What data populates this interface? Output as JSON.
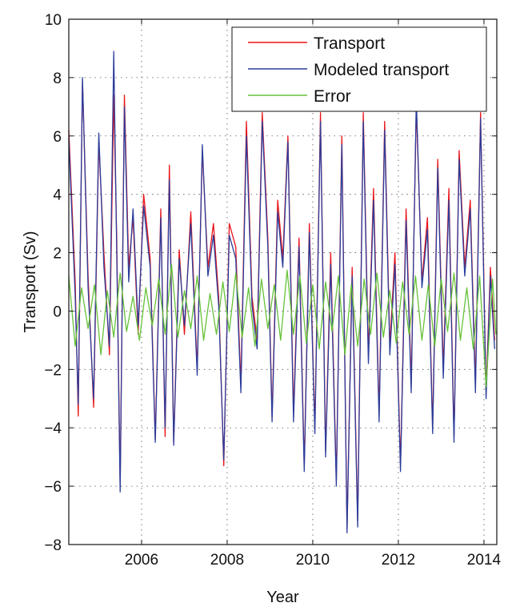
{
  "chart_data": {
    "type": "line",
    "title": "",
    "xlabel": "Year",
    "ylabel": "Transport (Sv)",
    "xlim": [
      2004.3,
      2014.3
    ],
    "ylim": [
      -8,
      10
    ],
    "xticks": [
      2006,
      2008,
      2010,
      2012,
      2014
    ],
    "xtick_labels": [
      "2006",
      "2008",
      "2010",
      "2012",
      "2014"
    ],
    "yticks": [
      -8,
      -6,
      -4,
      -2,
      0,
      2,
      4,
      6,
      8,
      10
    ],
    "ytick_labels": [
      "−8",
      "−6",
      "−4",
      "−2",
      "0",
      "2",
      "4",
      "6",
      "8",
      "10"
    ],
    "grid": true,
    "grid_style": "dotted",
    "legend_position": "top-right",
    "series": [
      {
        "name": "Transport",
        "color": "#e8141a",
        "x": [
          2004.3,
          2004.45,
          2004.52,
          2004.62,
          2004.75,
          2004.88,
          2005.0,
          2005.12,
          2005.25,
          2005.35,
          2005.42,
          2005.5,
          2005.6,
          2005.7,
          2005.8,
          2005.92,
          2006.05,
          2006.2,
          2006.32,
          2006.45,
          2006.55,
          2006.65,
          2006.75,
          2006.88,
          2007.0,
          2007.15,
          2007.3,
          2007.42,
          2007.55,
          2007.68,
          2007.8,
          2007.92,
          2008.05,
          2008.2,
          2008.32,
          2008.45,
          2008.58,
          2008.7,
          2008.82,
          2008.95,
          2009.05,
          2009.18,
          2009.3,
          2009.42,
          2009.55,
          2009.68,
          2009.8,
          2009.92,
          2010.05,
          2010.18,
          2010.3,
          2010.42,
          2010.55,
          2010.68,
          2010.8,
          2010.92,
          2011.05,
          2011.18,
          2011.3,
          2011.42,
          2011.55,
          2011.68,
          2011.8,
          2011.92,
          2012.05,
          2012.18,
          2012.3,
          2012.42,
          2012.55,
          2012.68,
          2012.8,
          2012.92,
          2013.05,
          2013.18,
          2013.3,
          2013.42,
          2013.55,
          2013.68,
          2013.8,
          2013.92,
          2014.05,
          2014.15,
          2014.25
        ],
        "y": [
          6.2,
          1.0,
          -3.6,
          7.9,
          1.2,
          -3.3,
          5.8,
          2.0,
          -1.5,
          7.4,
          2.5,
          -6.0,
          7.4,
          1.5,
          3.2,
          -0.8,
          4.0,
          1.8,
          -4.4,
          3.5,
          -4.3,
          5.0,
          -4.5,
          2.1,
          -0.8,
          3.4,
          -2.0,
          5.5,
          1.5,
          3.0,
          0.5,
          -5.3,
          3.0,
          2.2,
          -2.5,
          6.5,
          0.5,
          -1.0,
          6.8,
          2.5,
          -3.6,
          3.8,
          1.8,
          6.0,
          -3.5,
          2.5,
          -5.3,
          3.0,
          -4.0,
          6.8,
          -4.8,
          2.0,
          -5.8,
          6.0,
          -7.5,
          1.5,
          -7.2,
          6.8,
          -1.5,
          4.2,
          -3.5,
          6.5,
          -1.2,
          2.0,
          -5.3,
          3.5,
          -2.5,
          7.0,
          1.0,
          3.2,
          -4.0,
          5.2,
          -2.0,
          4.2,
          -4.3,
          5.5,
          1.5,
          3.8,
          -2.5,
          6.8,
          -2.8,
          1.5,
          -1.0
        ]
      },
      {
        "name": "Modeled transport",
        "color": "#2b3d9b",
        "x": [
          2004.3,
          2004.45,
          2004.52,
          2004.62,
          2004.75,
          2004.88,
          2005.0,
          2005.12,
          2005.25,
          2005.35,
          2005.42,
          2005.5,
          2005.6,
          2005.7,
          2005.8,
          2005.92,
          2006.05,
          2006.2,
          2006.32,
          2006.45,
          2006.55,
          2006.65,
          2006.75,
          2006.88,
          2007.0,
          2007.15,
          2007.3,
          2007.42,
          2007.55,
          2007.68,
          2007.8,
          2007.92,
          2008.05,
          2008.2,
          2008.32,
          2008.45,
          2008.58,
          2008.7,
          2008.82,
          2008.95,
          2009.05,
          2009.18,
          2009.3,
          2009.42,
          2009.55,
          2009.68,
          2009.8,
          2009.92,
          2010.05,
          2010.18,
          2010.3,
          2010.42,
          2010.55,
          2010.68,
          2010.8,
          2010.92,
          2011.05,
          2011.18,
          2011.3,
          2011.42,
          2011.55,
          2011.68,
          2011.8,
          2011.92,
          2012.05,
          2012.18,
          2012.3,
          2012.42,
          2012.55,
          2012.68,
          2012.8,
          2012.92,
          2013.05,
          2013.18,
          2013.3,
          2013.42,
          2013.55,
          2013.68,
          2013.8,
          2013.92,
          2014.05,
          2014.15,
          2014.25
        ],
        "y": [
          5.9,
          0.5,
          -3.2,
          8.0,
          0.8,
          -3.0,
          6.1,
          1.5,
          -1.2,
          8.9,
          2.0,
          -6.2,
          7.0,
          1.0,
          3.5,
          -0.5,
          3.6,
          1.5,
          -4.5,
          3.2,
          -4.0,
          4.5,
          -4.6,
          1.8,
          -0.5,
          3.0,
          -2.2,
          5.7,
          1.2,
          2.6,
          0.2,
          -5.1,
          2.6,
          1.8,
          -2.8,
          6.0,
          0.2,
          -1.3,
          6.5,
          2.2,
          -3.8,
          3.4,
          1.5,
          5.8,
          -3.8,
          2.2,
          -5.5,
          2.7,
          -4.2,
          6.5,
          -5.0,
          1.6,
          -6.0,
          5.7,
          -7.6,
          1.2,
          -7.4,
          6.5,
          -1.8,
          3.8,
          -3.8,
          6.2,
          -1.5,
          1.6,
          -5.5,
          3.1,
          -2.8,
          7.3,
          0.8,
          2.8,
          -4.2,
          4.9,
          -2.3,
          3.8,
          -4.5,
          5.2,
          1.2,
          3.5,
          -2.8,
          6.6,
          -3.0,
          1.2,
          -1.3
        ]
      },
      {
        "name": "Error",
        "color": "#66c23a",
        "x": [
          2004.3,
          2004.45,
          2004.6,
          2004.75,
          2004.9,
          2005.05,
          2005.2,
          2005.35,
          2005.5,
          2005.65,
          2005.8,
          2005.95,
          2006.1,
          2006.25,
          2006.4,
          2006.55,
          2006.7,
          2006.85,
          2007.0,
          2007.15,
          2007.3,
          2007.45,
          2007.6,
          2007.75,
          2007.9,
          2008.05,
          2008.2,
          2008.35,
          2008.5,
          2008.65,
          2008.8,
          2008.95,
          2009.1,
          2009.25,
          2009.4,
          2009.55,
          2009.7,
          2009.85,
          2010.0,
          2010.15,
          2010.3,
          2010.45,
          2010.6,
          2010.75,
          2010.9,
          2011.05,
          2011.2,
          2011.35,
          2011.5,
          2011.65,
          2011.8,
          2011.95,
          2012.1,
          2012.25,
          2012.4,
          2012.55,
          2012.7,
          2012.85,
          2013.0,
          2013.15,
          2013.3,
          2013.45,
          2013.6,
          2013.75,
          2013.9,
          2014.05,
          2014.2,
          2014.28
        ],
        "y": [
          1.2,
          -1.2,
          0.8,
          -0.6,
          0.9,
          -1.5,
          0.7,
          -0.9,
          1.3,
          -0.7,
          0.5,
          -1.0,
          0.8,
          -0.5,
          1.1,
          -0.8,
          1.6,
          -0.9,
          0.7,
          -0.6,
          1.2,
          -1.0,
          0.6,
          -0.8,
          1.0,
          -0.7,
          1.3,
          -0.9,
          0.8,
          -1.2,
          1.1,
          -0.6,
          0.9,
          -1.0,
          1.4,
          -0.8,
          1.2,
          -1.1,
          0.9,
          -1.3,
          1.0,
          -0.7,
          1.2,
          -1.5,
          0.9,
          -1.2,
          1.1,
          -0.8,
          1.3,
          -0.9,
          0.7,
          -1.1,
          1.0,
          -0.8,
          1.2,
          -1.0,
          0.9,
          -1.2,
          1.1,
          -0.7,
          1.3,
          -1.0,
          0.8,
          -1.3,
          1.2,
          -2.6,
          1.1,
          -0.8
        ]
      }
    ]
  }
}
